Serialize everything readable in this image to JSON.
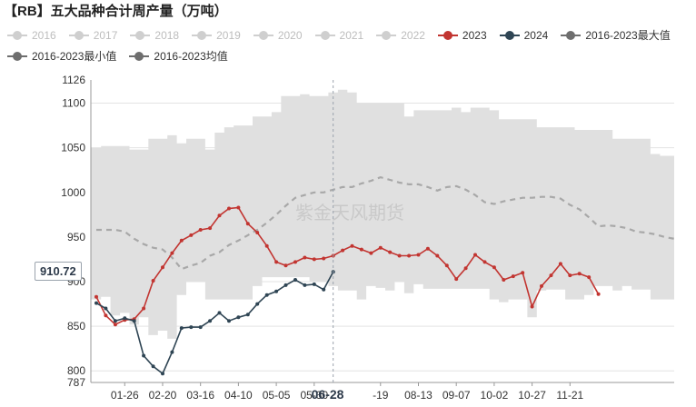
{
  "title": "【RB】五大品种合计周产量（万吨）",
  "watermark": "紫金天风期货",
  "legend": [
    {
      "label": "2016",
      "color": "#cfcfcf",
      "active": false
    },
    {
      "label": "2017",
      "color": "#cfcfcf",
      "active": false
    },
    {
      "label": "2018",
      "color": "#cfcfcf",
      "active": false
    },
    {
      "label": "2019",
      "color": "#cfcfcf",
      "active": false
    },
    {
      "label": "2020",
      "color": "#cfcfcf",
      "active": false
    },
    {
      "label": "2021",
      "color": "#cfcfcf",
      "active": false
    },
    {
      "label": "2022",
      "color": "#cfcfcf",
      "active": false
    },
    {
      "label": "2023",
      "color": "#c23531",
      "active": true
    },
    {
      "label": "2024",
      "color": "#2f4554",
      "active": true
    },
    {
      "label": "2016-2023最大值",
      "color": "#6e6e6e",
      "active": true
    },
    {
      "label": "2016-2023最小值",
      "color": "#6e6e6e",
      "active": true
    },
    {
      "label": "2016-2023均值",
      "color": "#6e6e6e",
      "active": true
    }
  ],
  "cursor": {
    "y_label": "910.72",
    "x_label": "06-28"
  },
  "chart_data": {
    "type": "line",
    "ylim": [
      787,
      1126
    ],
    "y_ticks": [
      800,
      850,
      900,
      950,
      1000,
      1050,
      1100
    ],
    "y_extreme_labels": [
      "787",
      "1126"
    ],
    "x_tick_labels": [
      "01-26",
      "02-20",
      "03-16",
      "04-10",
      "05-05",
      "05-30",
      "-19",
      "08-13",
      "09-07",
      "10-02",
      "10-27",
      "11-21"
    ],
    "band_max": [
      1050,
      1052,
      1052,
      1052,
      1048,
      1048,
      1060,
      1060,
      1064,
      1055,
      1060,
      1060,
      1048,
      1067,
      1073,
      1075,
      1075,
      1085,
      1085,
      1090,
      1108,
      1108,
      1110,
      1108,
      1108,
      1112,
      1115,
      1112,
      1100,
      1100,
      1100,
      1100,
      1100,
      1085,
      1092,
      1092,
      1092,
      1092,
      1095,
      1090,
      1095,
      1095,
      1092,
      1082,
      1082,
      1082,
      1082,
      1073,
      1073,
      1073,
      1073,
      1070,
      1070,
      1070,
      1070,
      1060,
      1060,
      1060,
      1060,
      1043,
      1041,
      1041
    ],
    "band_min": [
      880,
      883,
      862,
      865,
      852,
      860,
      840,
      845,
      836,
      885,
      900,
      900,
      880,
      880,
      880,
      880,
      880,
      895,
      905,
      905,
      905,
      905,
      905,
      900,
      900,
      895,
      890,
      890,
      880,
      895,
      893,
      890,
      900,
      887,
      897,
      892,
      892,
      892,
      892,
      892,
      892,
      892,
      880,
      877,
      880,
      880,
      860,
      890,
      891,
      891,
      880,
      880,
      885,
      895,
      895,
      890,
      895,
      891,
      891,
      880,
      880,
      880
    ],
    "mean": [
      958,
      958,
      958,
      956,
      948,
      942,
      938,
      936,
      927,
      914,
      918,
      921,
      929,
      933,
      941,
      946,
      952,
      958,
      966,
      975,
      985,
      994,
      997,
      1000,
      1000,
      1003,
      1006,
      1006,
      1010,
      1013,
      1017,
      1014,
      1011,
      1009,
      1009,
      1006,
      1002,
      1006,
      1007,
      1003,
      997,
      989,
      987,
      990,
      992,
      994,
      994,
      995,
      995,
      993,
      986,
      981,
      972,
      962,
      963,
      962,
      960,
      956,
      955,
      953,
      950,
      948
    ],
    "series": [
      {
        "name": "2023",
        "color": "#c23531",
        "values": [
          883,
          862,
          852,
          857,
          858,
          870,
          901,
          916,
          932,
          946,
          952,
          958,
          960,
          974,
          982,
          983,
          965,
          955,
          940,
          922,
          918,
          922,
          927,
          925,
          926,
          929,
          935,
          940,
          936,
          932,
          938,
          933,
          929,
          929,
          930,
          937,
          929,
          918,
          903,
          915,
          930,
          922,
          916,
          902,
          906,
          910,
          872,
          895,
          907,
          920,
          907,
          909,
          905,
          886
        ]
      },
      {
        "name": "2024",
        "color": "#2f4554",
        "values": [
          876,
          870,
          856,
          859,
          856,
          817,
          805,
          797,
          821,
          848,
          849,
          849,
          856,
          865,
          856,
          860,
          863,
          875,
          885,
          889,
          896,
          902,
          896,
          897,
          891,
          911
        ]
      }
    ]
  }
}
